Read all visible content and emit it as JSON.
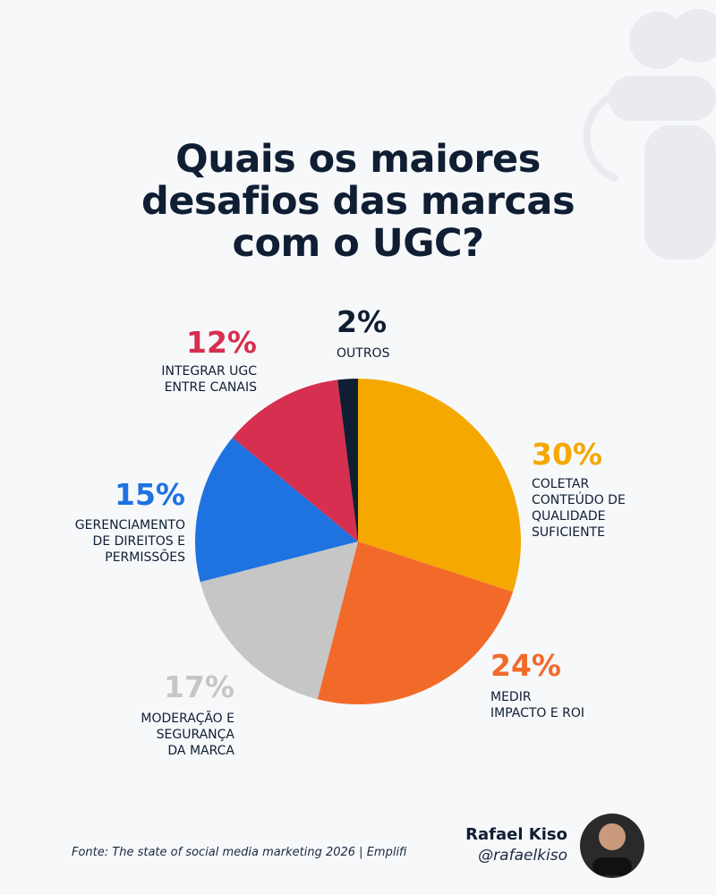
{
  "chart_data": {
    "type": "pie",
    "title": "Quais os maiores\ndesafios das marcas\ncom o UGC?",
    "categories": [
      "COLETAR\nCONTEÚDO DE\nQUALIDADE\nSUFICIENTE",
      "MEDIR\nIMPACTO E ROI",
      "MODERAÇÃO E\nSEGURANÇA\nDA MARCA",
      "GERENCIAMENTO\nDE DIREITOS E\nPERMISSÕES",
      "INTEGRAR UGC\nENTRE CANAIS",
      "OUTROS"
    ],
    "values": [
      30,
      24,
      17,
      15,
      12,
      2
    ],
    "value_labels": [
      "30%",
      "24%",
      "17%",
      "15%",
      "12%",
      "2%"
    ],
    "colors": [
      "#f5a800",
      "#f26a2a",
      "#c6c6c6",
      "#1f73e0",
      "#d62f4f",
      "#0f1e33"
    ],
    "source": "Fonte: The state of social media marketing 2026 | Emplifi",
    "author": "Rafael Kiso",
    "handle": "@rafaelkiso"
  }
}
